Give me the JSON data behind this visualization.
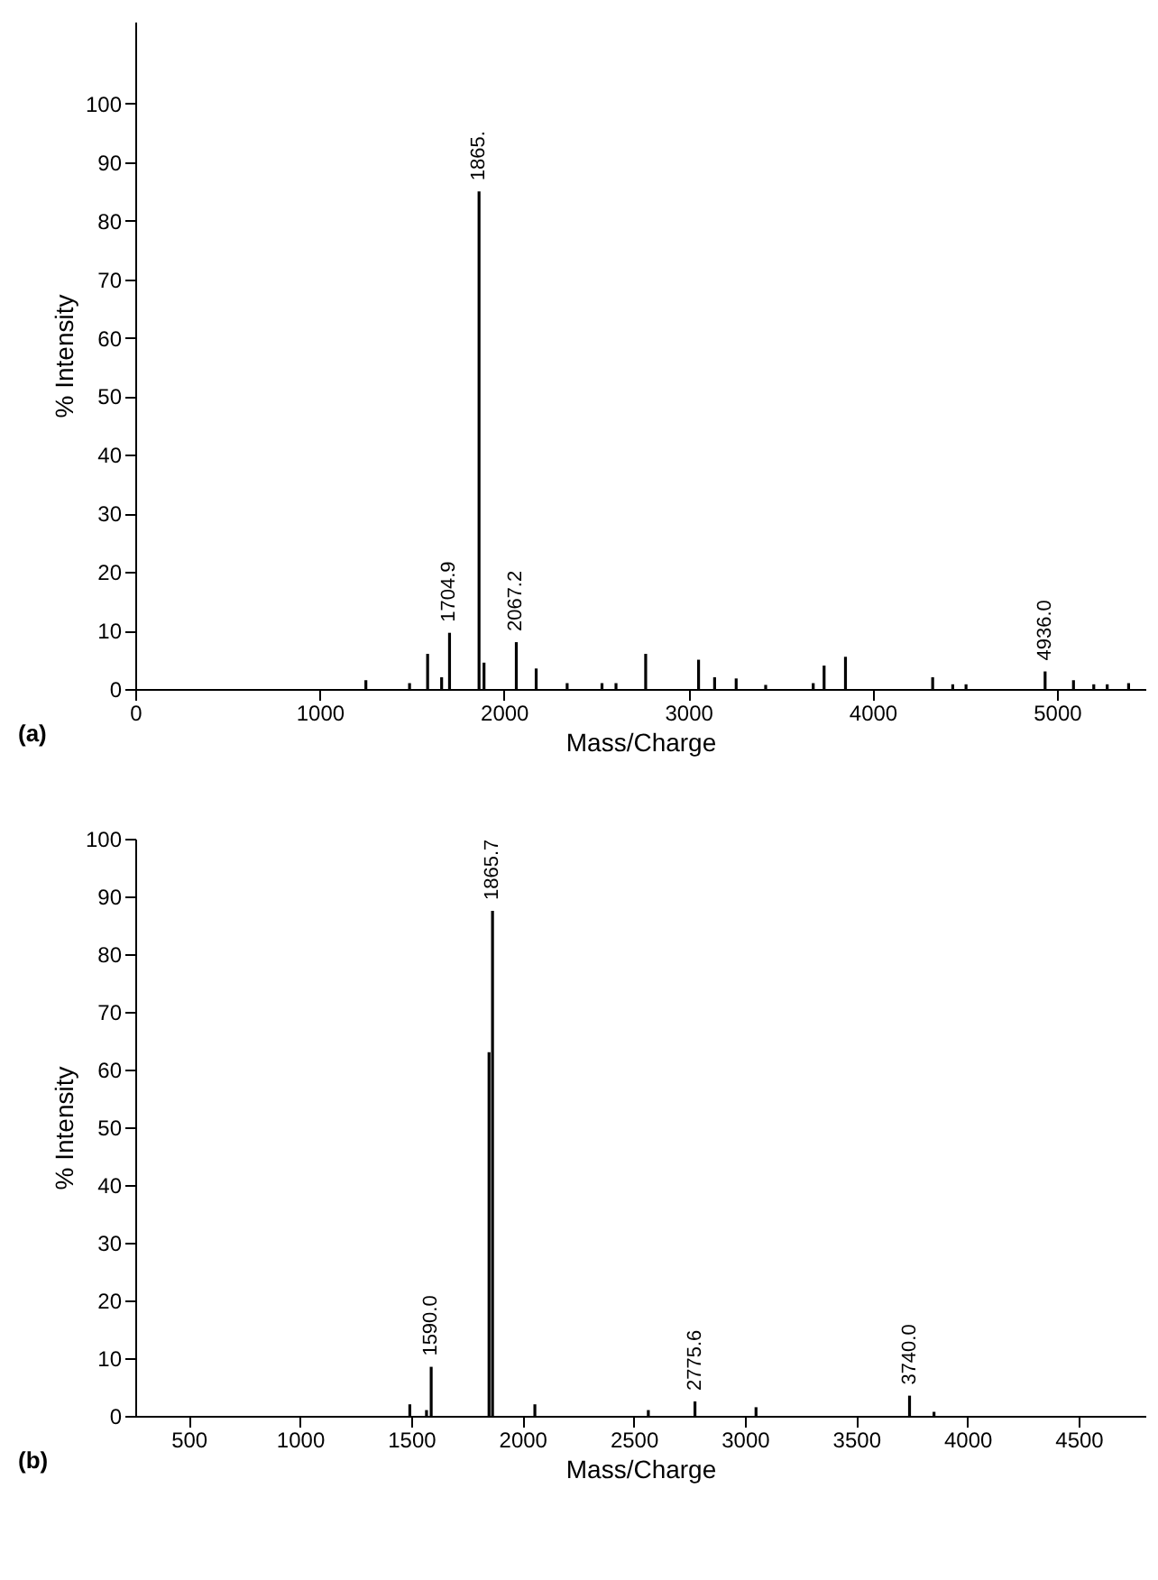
{
  "chart_data": [
    {
      "type": "bar",
      "title": "(a)",
      "xlabel": "Mass/Charge",
      "ylabel": "% Intensity",
      "color": "#000000",
      "x": [
        1251,
        1488,
        1586,
        1662,
        1704.9,
        1865,
        1892,
        2067.2,
        2175,
        2343,
        2532,
        2608,
        2769,
        3056,
        3143,
        3260,
        3420,
        3678,
        3737,
        3853,
        4326,
        4435,
        4507,
        4936,
        5090,
        5200,
        5273,
        5389
      ],
      "values": [
        1.5,
        1,
        6,
        2,
        9.6,
        85,
        4.5,
        8,
        3.5,
        1,
        1,
        1,
        6,
        5,
        2,
        1.8,
        0.7,
        1,
        4,
        5.5,
        2,
        0.8,
        0.8,
        3,
        1.5,
        0.8,
        0.8,
        1
      ],
      "xlim": [
        0,
        5480
      ],
      "ylim": [
        0,
        114
      ],
      "xticks": [
        0,
        1000,
        2000,
        3000,
        4000,
        5000
      ],
      "yticks": [
        0,
        10,
        20,
        30,
        40,
        50,
        60,
        70,
        80,
        90,
        100
      ],
      "annotations": [
        {
          "text": "1865.",
          "x": 1865,
          "y": 85
        },
        {
          "text": "1704.9",
          "x": 1704.9,
          "y": 9.6
        },
        {
          "text": "2067.2",
          "x": 2067.2,
          "y": 8
        },
        {
          "text": "4936.0",
          "x": 4936,
          "y": 3
        }
      ],
      "grid": false
    },
    {
      "type": "bar",
      "title": "(b)",
      "xlabel": "Mass/Charge",
      "ylabel": "% Intensity",
      "color": "#000000",
      "x": [
        1494,
        1569,
        1590,
        1850,
        1865.7,
        2056,
        2566,
        2775.6,
        3050,
        3740,
        3850
      ],
      "values": [
        2,
        1,
        8.5,
        63,
        87.5,
        2,
        1,
        2.5,
        1.5,
        3.5,
        0.7
      ],
      "xlim": [
        260,
        4800
      ],
      "ylim": [
        0,
        100
      ],
      "xticks": [
        500,
        1000,
        1500,
        2000,
        2500,
        3000,
        3500,
        4000,
        4500
      ],
      "yticks": [
        0,
        10,
        20,
        30,
        40,
        50,
        60,
        70,
        80,
        90,
        100
      ],
      "annotations": [
        {
          "text": "1865.7",
          "x": 1865.7,
          "y": 87.5
        },
        {
          "text": "1590.0",
          "x": 1590,
          "y": 8.5
        },
        {
          "text": "2775.6",
          "x": 2775.6,
          "y": 2.5
        },
        {
          "text": "3740.0",
          "x": 3740,
          "y": 3.5
        }
      ],
      "grid": false
    }
  ]
}
